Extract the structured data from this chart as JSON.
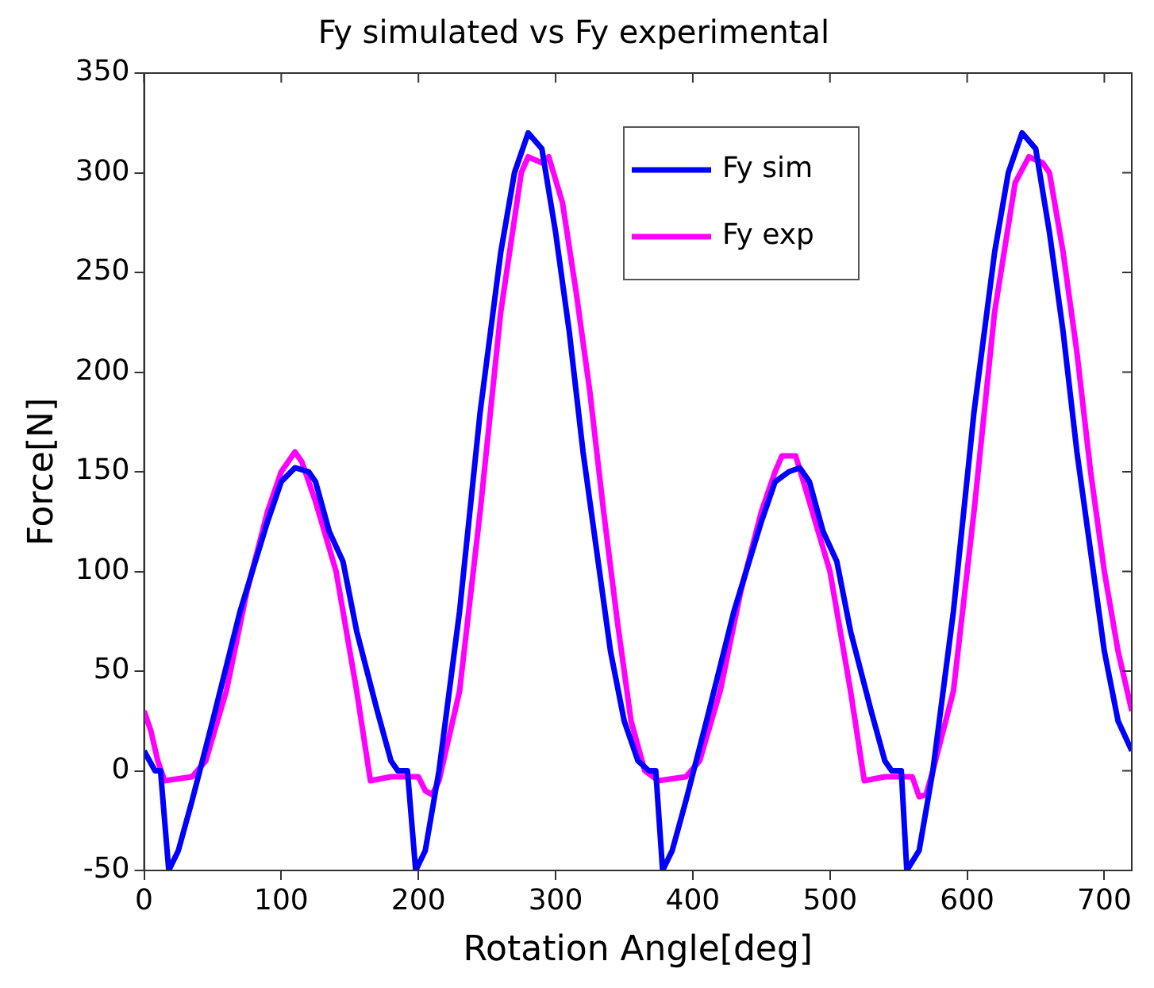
{
  "chart_data": {
    "type": "line",
    "title": "Fy simulated vs Fy experimental",
    "xlabel": "Rotation Angle[deg]",
    "ylabel": "Force[N]",
    "xlim": [
      0,
      720
    ],
    "xticks": [
      0,
      100,
      200,
      300,
      400,
      500,
      600,
      700
    ],
    "ylim": [
      -50,
      350
    ],
    "yticks": [
      -50,
      0,
      50,
      100,
      150,
      200,
      250,
      300,
      350
    ],
    "grid": false,
    "legend": "top right",
    "marker": "none",
    "line_style": "solid",
    "series": [
      {
        "name": "Fy sim",
        "color": "#0000ff",
        "x": [
          0,
          8,
          12,
          18,
          25,
          35,
          50,
          70,
          90,
          100,
          110,
          120,
          125,
          135,
          145,
          155,
          170,
          180,
          185,
          192,
          198,
          205,
          215,
          230,
          245,
          260,
          270,
          280,
          290,
          300,
          310,
          320,
          330,
          340,
          350,
          360,
          368,
          373,
          378,
          385,
          395,
          410,
          430,
          450,
          460,
          470,
          478,
          485,
          495,
          505,
          515,
          530,
          540,
          545,
          552,
          556,
          565,
          575,
          590,
          605,
          620,
          630,
          640,
          650,
          660,
          670,
          680,
          690,
          700,
          710,
          720
        ],
        "values": [
          10,
          0,
          0,
          -50,
          -40,
          -15,
          25,
          80,
          125,
          145,
          152,
          150,
          145,
          120,
          105,
          70,
          30,
          5,
          0,
          0,
          -50,
          -40,
          0,
          80,
          180,
          260,
          300,
          320,
          312,
          270,
          220,
          160,
          110,
          60,
          25,
          5,
          0,
          0,
          -50,
          -40,
          -15,
          25,
          80,
          125,
          145,
          150,
          152,
          145,
          120,
          105,
          70,
          30,
          5,
          0,
          0,
          -50,
          -40,
          0,
          80,
          180,
          260,
          300,
          320,
          312,
          270,
          220,
          160,
          110,
          60,
          25,
          10
        ]
      },
      {
        "name": "Fy exp",
        "color": "#ff00ff",
        "x": [
          0,
          5,
          10,
          15,
          35,
          45,
          60,
          75,
          90,
          100,
          110,
          115,
          125,
          140,
          155,
          165,
          180,
          200,
          205,
          210,
          215,
          230,
          245,
          260,
          275,
          280,
          290,
          295,
          305,
          315,
          325,
          335,
          345,
          355,
          365,
          375,
          395,
          405,
          420,
          435,
          450,
          460,
          465,
          475,
          485,
          500,
          515,
          525,
          540,
          560,
          565,
          570,
          575,
          590,
          605,
          620,
          635,
          645,
          655,
          660,
          670,
          680,
          690,
          700,
          710,
          720
        ],
        "values": [
          30,
          20,
          5,
          -5,
          -3,
          5,
          40,
          90,
          130,
          150,
          160,
          155,
          135,
          100,
          40,
          -5,
          -3,
          -3,
          -10,
          -12,
          -5,
          40,
          130,
          230,
          300,
          308,
          305,
          308,
          285,
          240,
          190,
          130,
          75,
          25,
          0,
          -5,
          -3,
          5,
          40,
          90,
          130,
          150,
          158,
          158,
          135,
          100,
          40,
          -5,
          -3,
          -3,
          -13,
          -12,
          0,
          40,
          130,
          230,
          295,
          308,
          305,
          300,
          260,
          210,
          150,
          100,
          60,
          30
        ]
      }
    ]
  }
}
